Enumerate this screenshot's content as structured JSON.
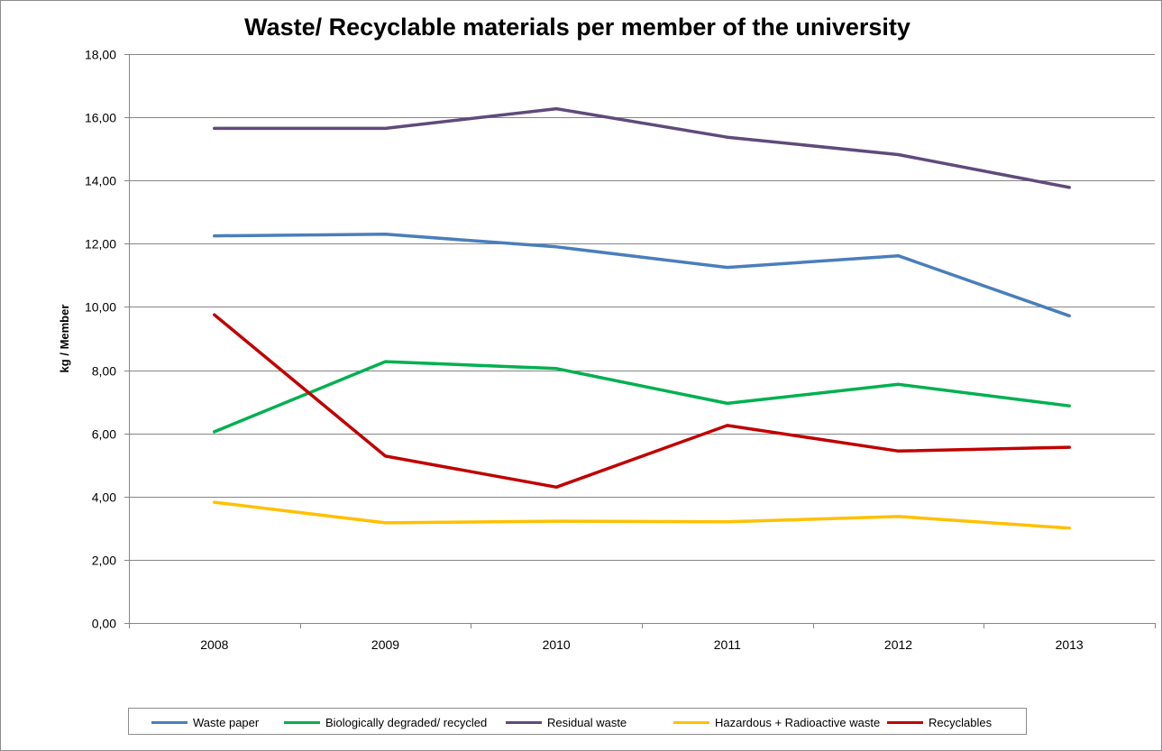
{
  "chart_data": {
    "type": "line",
    "title": "Waste/ Recyclable materials per member of the university",
    "xlabel": "",
    "ylabel": "kg / Member",
    "categories": [
      "2008",
      "2009",
      "2010",
      "2011",
      "2012",
      "2013"
    ],
    "ylim": [
      0,
      18
    ],
    "yticks": [
      "0,00",
      "2,00",
      "4,00",
      "6,00",
      "8,00",
      "10,00",
      "12,00",
      "14,00",
      "16,00",
      "18,00"
    ],
    "grid": true,
    "legend_position": "bottom",
    "series": [
      {
        "name": "Waste paper",
        "color": "#4a7ebb",
        "values": [
          12.25,
          12.3,
          11.9,
          11.25,
          11.62,
          9.72
        ]
      },
      {
        "name": "Biologically degraded/ recycled",
        "color": "#00b050",
        "values": [
          6.05,
          8.27,
          8.05,
          6.95,
          7.55,
          6.87
        ]
      },
      {
        "name": "Residual waste",
        "color": "#604a7b",
        "values": [
          15.65,
          15.65,
          16.27,
          15.37,
          14.82,
          13.78
        ]
      },
      {
        "name": "Hazardous + Radioactive waste",
        "color": "#ffc000",
        "values": [
          3.82,
          3.17,
          3.22,
          3.2,
          3.37,
          3.0
        ]
      },
      {
        "name": "Recyclables",
        "color": "#c00000",
        "values": [
          9.75,
          5.28,
          4.3,
          6.25,
          5.44,
          5.56
        ]
      }
    ]
  }
}
